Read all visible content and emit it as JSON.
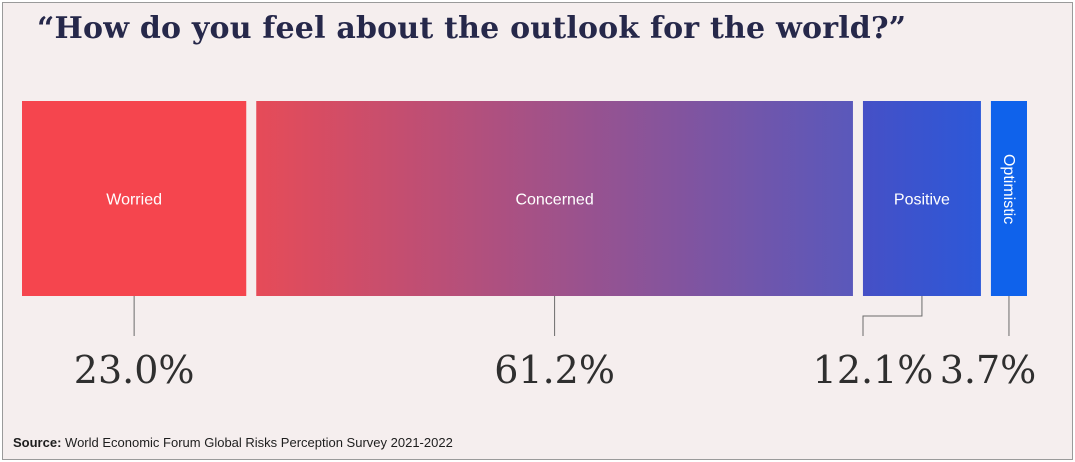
{
  "chart_data": {
    "type": "bar",
    "orientation": "horizontal-stacked",
    "title": "“How do you feel about the outlook for the world?”",
    "categories": [
      "Worried",
      "Concerned",
      "Positive",
      "Optimistic"
    ],
    "values": [
      23.0,
      61.2,
      12.1,
      3.7
    ],
    "value_labels": [
      "23.0%",
      "61.2%",
      "12.1%",
      "3.7%"
    ],
    "unit": "%",
    "colors": {
      "worried": "#f5454e",
      "concerned_start": "#e64b58",
      "concerned_end": "#5a58bb",
      "positive_start": "#4650c6",
      "positive_end": "#2c58d8",
      "optimistic": "#0f62eb"
    },
    "grid": false
  },
  "source": {
    "label": "Source:",
    "text": "World Economic Forum Global Risks Perception Survey 2021-2022"
  }
}
